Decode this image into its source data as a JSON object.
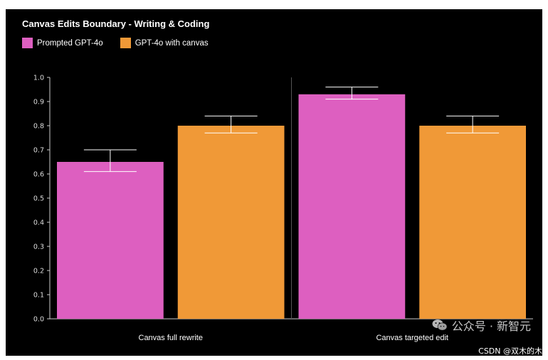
{
  "colors": {
    "background": "#000000",
    "prompted": "#dd5fc0",
    "canvas": "#f09937",
    "axis": "#cccccc",
    "text": "#ffffff"
  },
  "chart_data": {
    "type": "bar",
    "title": "Canvas Edits Boundary - Writing & Coding",
    "categories": [
      "Canvas full rewrite",
      "Canvas targeted edit"
    ],
    "series": [
      {
        "name": "Prompted GPT-4o",
        "values": [
          0.65,
          0.93
        ],
        "error_low": [
          0.61,
          0.91
        ],
        "error_high": [
          0.7,
          0.96
        ]
      },
      {
        "name": "GPT-4o with canvas",
        "values": [
          0.8,
          0.8
        ],
        "error_low": [
          0.77,
          0.77
        ],
        "error_high": [
          0.84,
          0.84
        ]
      }
    ],
    "ylim": [
      0,
      1.0
    ],
    "yticks": [
      "0.0",
      "0.1",
      "0.2",
      "0.3",
      "0.4",
      "0.5",
      "0.6",
      "0.7",
      "0.8",
      "0.9",
      "1.0"
    ],
    "legend_position": "top-left",
    "grid": false
  },
  "watermark": {
    "icon": "wechat-icon",
    "text": "公众号 · 新智元"
  },
  "credit": "CSDN @双木的木"
}
